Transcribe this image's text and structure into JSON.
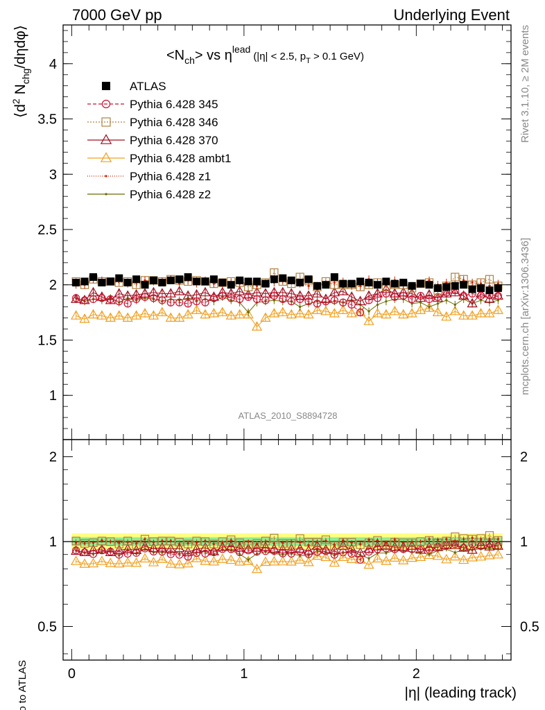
{
  "header": {
    "left": "7000 GeV pp",
    "right": "Underlying Event"
  },
  "chart_data": [
    {
      "type": "scatter",
      "title": "<N_ch> vs η^lead (|η| < 2.5, p_T > 0.1 GeV)",
      "title_main": "<N",
      "title_sub1": "ch",
      "title_mid": "> vs η",
      "title_sup": "lead",
      "title_cut": "(|η| < 2.5, p",
      "title_cut_sub": "T",
      "title_cut_end": " > 0.1 GeV)",
      "ylabel": "⟨d² N_chg/dηdφ⟩",
      "ylabel_a": "⟨d",
      "ylabel_sup": "2",
      "ylabel_b": " N",
      "ylabel_sub": "chg",
      "ylabel_c": "/dηdφ⟩",
      "xlim": [
        -0.05,
        2.55
      ],
      "ylim": [
        0.6,
        4.35
      ],
      "yticks": [
        "1",
        "1.5",
        "2",
        "2.5",
        "3",
        "3.5",
        "4"
      ],
      "legend_position": "top-left",
      "watermark": "ATLAS_2010_S8894728",
      "x": [
        0.025,
        0.075,
        0.125,
        0.175,
        0.225,
        0.275,
        0.325,
        0.375,
        0.425,
        0.475,
        0.525,
        0.575,
        0.625,
        0.675,
        0.725,
        0.775,
        0.825,
        0.875,
        0.925,
        0.975,
        1.025,
        1.075,
        1.125,
        1.175,
        1.225,
        1.275,
        1.325,
        1.375,
        1.425,
        1.475,
        1.525,
        1.575,
        1.625,
        1.675,
        1.725,
        1.775,
        1.825,
        1.875,
        1.925,
        1.975,
        2.025,
        2.075,
        2.125,
        2.175,
        2.225,
        2.275,
        2.325,
        2.375,
        2.425,
        2.475
      ],
      "series": [
        {
          "name": "ATLAS",
          "color": "#000000",
          "marker": "filled-square",
          "values": [
            2.02,
            2.03,
            2.07,
            2.02,
            2.03,
            2.06,
            2.02,
            2.05,
            2.0,
            2.04,
            2.02,
            2.04,
            2.05,
            2.07,
            2.03,
            2.03,
            2.05,
            2.02,
            2.0,
            2.04,
            2.03,
            2.03,
            2.01,
            2.05,
            2.06,
            2.04,
            2.02,
            2.05,
            1.99,
            2.0,
            2.07,
            2.01,
            2.01,
            2.03,
            2.02,
            2.0,
            2.03,
            2.01,
            2.02,
            1.99,
            2.01,
            2.0,
            1.97,
            1.98,
            1.99,
            2.0,
            1.96,
            1.97,
            1.95,
            1.97
          ]
        },
        {
          "name": "Pythia 6.428 345",
          "color": "#c8102e",
          "marker": "open-circle",
          "dash": "5,3",
          "values": [
            1.88,
            1.86,
            1.87,
            1.88,
            1.87,
            1.85,
            1.83,
            1.87,
            1.89,
            1.88,
            1.86,
            1.84,
            1.84,
            1.83,
            1.85,
            1.84,
            1.88,
            1.9,
            1.88,
            1.87,
            1.89,
            1.87,
            1.86,
            1.9,
            1.87,
            1.85,
            1.87,
            1.85,
            1.83,
            1.85,
            1.86,
            1.84,
            1.82,
            1.75,
            1.86,
            1.88,
            1.92,
            1.89,
            1.9,
            1.87,
            1.9,
            1.87,
            1.89,
            1.93,
            1.95,
            1.9,
            1.92,
            1.9,
            1.91,
            1.9
          ]
        },
        {
          "name": "Pythia 6.428 346",
          "color": "#b08040",
          "marker": "open-square",
          "dash": "2,2",
          "values": [
            2.03,
            2.0,
            2.05,
            2.03,
            2.03,
            2.02,
            2.03,
            2.0,
            2.04,
            2.04,
            2.03,
            2.05,
            2.04,
            2.03,
            2.04,
            2.03,
            2.01,
            2.02,
            2.03,
            2.02,
            1.98,
            2.0,
            2.02,
            2.11,
            2.03,
            2.01,
            2.07,
            2.04,
            1.98,
            2.03,
            2.0,
            2.0,
            2.0,
            1.98,
            2.0,
            2.02,
            1.98,
            2.0,
            2.0,
            1.97,
            2.01,
            2.02,
            1.95,
            1.99,
            2.07,
            2.05,
            2.0,
            2.02,
            2.05,
            1.99
          ]
        },
        {
          "name": "Pythia 6.428 370",
          "color": "#a01020",
          "marker": "open-triangle",
          "values": [
            1.87,
            1.86,
            1.93,
            1.89,
            1.86,
            1.92,
            1.9,
            1.91,
            1.92,
            1.93,
            1.92,
            1.92,
            1.94,
            1.9,
            1.91,
            1.93,
            1.89,
            1.93,
            1.92,
            1.94,
            1.91,
            1.93,
            1.92,
            1.93,
            1.93,
            1.92,
            1.9,
            1.9,
            1.92,
            1.87,
            1.93,
            1.94,
            1.89,
            1.85,
            1.9,
            1.92,
            1.96,
            1.92,
            1.93,
            1.92,
            1.88,
            1.91,
            1.88,
            1.92,
            1.93,
            1.9,
            1.83,
            1.92,
            1.87,
            1.9
          ]
        },
        {
          "name": "Pythia 6.428 ambt1",
          "color": "#f0a020",
          "marker": "open-triangle",
          "values": [
            1.72,
            1.69,
            1.73,
            1.72,
            1.7,
            1.72,
            1.7,
            1.72,
            1.74,
            1.72,
            1.75,
            1.7,
            1.7,
            1.73,
            1.77,
            1.73,
            1.74,
            1.75,
            1.72,
            1.73,
            1.73,
            1.62,
            1.7,
            1.74,
            1.75,
            1.73,
            1.74,
            1.73,
            1.77,
            1.76,
            1.74,
            1.77,
            1.74,
            1.75,
            1.67,
            1.74,
            1.73,
            1.76,
            1.73,
            1.74,
            1.77,
            1.79,
            1.75,
            1.71,
            1.76,
            1.72,
            1.72,
            1.74,
            1.74,
            1.77
          ]
        },
        {
          "name": "Pythia 6.428 z1",
          "color": "#cc2200",
          "marker": "dot",
          "dash": "1,2",
          "values": [
            2.0,
            2.0,
            2.05,
            2.04,
            2.03,
            2.04,
            2.01,
            2.02,
            2.04,
            2.03,
            2.03,
            2.05,
            2.01,
            2.04,
            2.01,
            2.04,
            2.01,
            2.0,
            2.02,
            2.01,
            2.03,
            1.99,
            2.01,
            2.02,
            2.04,
            2.04,
            2.01,
            1.99,
            1.99,
            2.01,
            2.02,
            2.03,
            1.99,
            1.99,
            2.05,
            2.02,
            2.01,
            2.04,
            2.0,
            1.99,
            2.01,
            2.04,
            2.0,
            2.02,
            2.0,
            2.04,
            2.02,
            2.01,
            1.99,
            2.01
          ]
        },
        {
          "name": "Pythia 6.428 z2",
          "color": "#6b6b00",
          "marker": "dot",
          "values": [
            1.88,
            1.85,
            1.87,
            1.86,
            1.88,
            1.84,
            1.88,
            1.86,
            1.88,
            1.87,
            1.85,
            1.87,
            1.86,
            1.88,
            1.86,
            1.87,
            1.85,
            1.89,
            1.86,
            1.84,
            1.75,
            1.84,
            1.85,
            1.86,
            1.85,
            1.85,
            1.8,
            1.83,
            1.85,
            1.84,
            1.85,
            1.84,
            1.86,
            1.82,
            1.76,
            1.82,
            1.85,
            1.87,
            1.87,
            1.83,
            1.84,
            1.8,
            1.83,
            1.86,
            1.82,
            1.87,
            1.83,
            1.86,
            1.84,
            1.86
          ]
        }
      ]
    },
    {
      "type": "scatter",
      "ylabel": "Ratio to ATLAS",
      "xlabel": "|η| (leading track)",
      "xlim": [
        -0.05,
        2.55
      ],
      "ylim": [
        0.38,
        2.3
      ],
      "yticks": [
        "0.5",
        "1",
        "2"
      ],
      "xticks": [
        "0",
        "1",
        "2"
      ],
      "band_colors": {
        "inner": "#90ee90",
        "outer": "#ffff80"
      }
    }
  ],
  "sidebar": {
    "rivet": "Rivet 3.1.10, ≥ 2M events",
    "mcplots": "mcplots.cern.ch [arXiv:1306.3436]"
  }
}
